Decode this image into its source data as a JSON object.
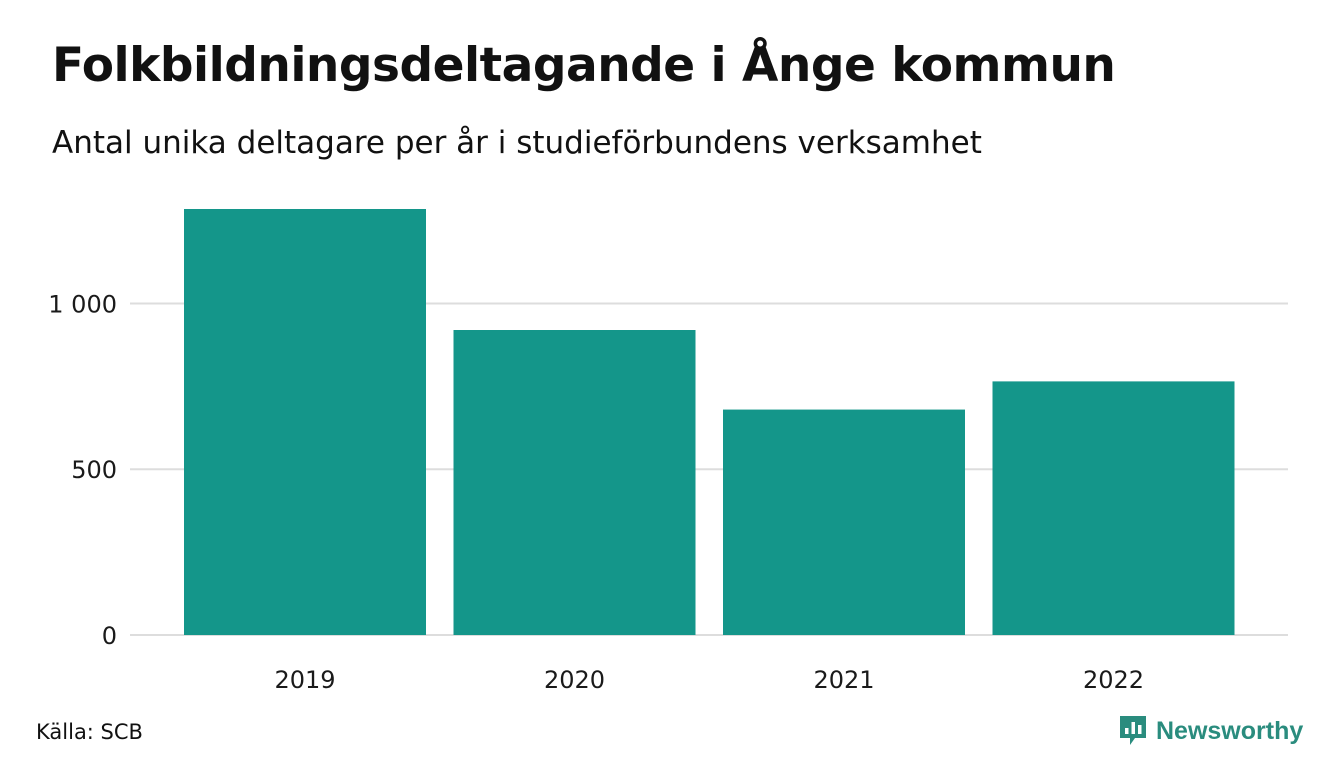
{
  "header": {
    "title": "Folkbildningsdeltagande i Ånge kommun",
    "subtitle": "Antal unika deltagare per år i studieförbundens verksamhet"
  },
  "footer": {
    "source": "Källa: SCB",
    "brand": "Newsworthy",
    "brand_icon": "bar-chart-speech-bubble-icon",
    "brand_color": "#2a8c7e"
  },
  "chart_data": {
    "type": "bar",
    "categories": [
      "2019",
      "2020",
      "2021",
      "2022"
    ],
    "values": [
      1285,
      920,
      680,
      765
    ],
    "ylim": [
      0,
      1285
    ],
    "yticks": [
      0,
      500,
      1000
    ],
    "ytick_labels": [
      "0",
      "500",
      "1 000"
    ],
    "grid": true,
    "legend": "none",
    "bar_color": "#14968a",
    "grid_color": "#dddddd"
  }
}
